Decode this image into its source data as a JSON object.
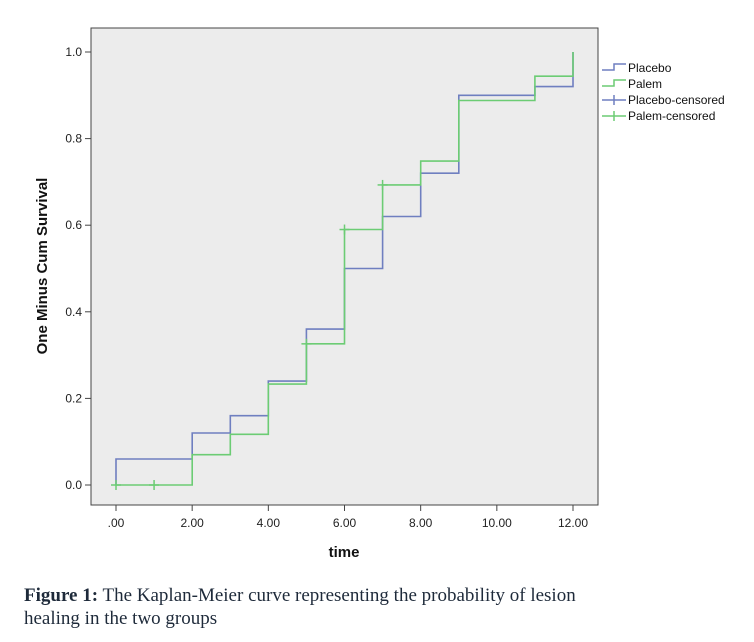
{
  "chart_data": {
    "type": "line",
    "step": true,
    "xlabel": "time",
    "ylabel": "One Minus Cum Survival",
    "xlim": [
      0,
      12
    ],
    "ylim": [
      0,
      1.0
    ],
    "x_ticks": [
      ".00",
      "2.00",
      "4.00",
      "6.00",
      "8.00",
      "10.00",
      "12.00"
    ],
    "x_tick_values": [
      0,
      2,
      4,
      6,
      8,
      10,
      12
    ],
    "y_ticks": [
      "0.0",
      "0.2",
      "0.4",
      "0.6",
      "0.8",
      "1.0"
    ],
    "y_tick_values": [
      0,
      0.2,
      0.4,
      0.6,
      0.8,
      1.0
    ],
    "grid": false,
    "legend_position": "right",
    "series": [
      {
        "name": "Placebo",
        "color": "#6f7fc0",
        "steps": [
          [
            0,
            0
          ],
          [
            0,
            0.06
          ],
          [
            2,
            0.06
          ],
          [
            2,
            0.12
          ],
          [
            3,
            0.12
          ],
          [
            3,
            0.16
          ],
          [
            4,
            0.16
          ],
          [
            4,
            0.24
          ],
          [
            5,
            0.24
          ],
          [
            5,
            0.36
          ],
          [
            6,
            0.36
          ],
          [
            6,
            0.5
          ],
          [
            7,
            0.5
          ],
          [
            7,
            0.62
          ],
          [
            8,
            0.62
          ],
          [
            8,
            0.72
          ],
          [
            9,
            0.72
          ],
          [
            9,
            0.9
          ],
          [
            11,
            0.9
          ],
          [
            11,
            0.92
          ],
          [
            12,
            0.92
          ],
          [
            12,
            1.0
          ]
        ]
      },
      {
        "name": "Palem",
        "color": "#6ccc74",
        "steps": [
          [
            0,
            0
          ],
          [
            2,
            0
          ],
          [
            2,
            0.07
          ],
          [
            3,
            0.07
          ],
          [
            3,
            0.117
          ],
          [
            4,
            0.117
          ],
          [
            4,
            0.233
          ],
          [
            5,
            0.233
          ],
          [
            5,
            0.326
          ],
          [
            6,
            0.326
          ],
          [
            6,
            0.59
          ],
          [
            7,
            0.59
          ],
          [
            7,
            0.693
          ],
          [
            8,
            0.693
          ],
          [
            8,
            0.748
          ],
          [
            9,
            0.748
          ],
          [
            9,
            0.888
          ],
          [
            11,
            0.888
          ],
          [
            11,
            0.944
          ],
          [
            12,
            0.944
          ],
          [
            12,
            1.0
          ]
        ]
      }
    ],
    "censored": [
      {
        "name": "Placebo-censored",
        "color": "#6f7fc0",
        "points": []
      },
      {
        "name": "Palem-censored",
        "color": "#6ccc74",
        "points": [
          [
            0,
            0
          ],
          [
            1,
            0
          ],
          [
            5,
            0.326
          ],
          [
            6,
            0.59
          ],
          [
            7,
            0.693
          ]
        ]
      }
    ],
    "legend": [
      "Placebo",
      "Palem",
      "Placebo-censored",
      "Palem-censored"
    ]
  },
  "caption": {
    "label": "Figure 1:",
    "text": " The Kaplan-Meier curve representing the probability of lesion healing in the two groups"
  },
  "colors": {
    "plot_background": "#ececec",
    "axis": "#444444"
  }
}
